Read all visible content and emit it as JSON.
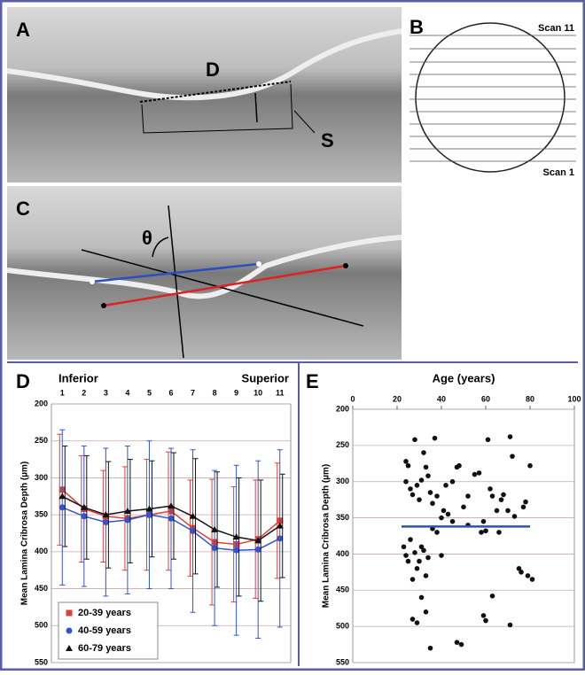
{
  "panels": {
    "a": {
      "letter": "A",
      "distance": "D",
      "slope": "S"
    },
    "b": {
      "letter": "B",
      "top_scan": "Scan 11",
      "bottom_scan": "Scan 1"
    },
    "c": {
      "letter": "C",
      "angle": "θ"
    },
    "d": {
      "letter": "D"
    },
    "e": {
      "letter": "E"
    }
  },
  "chart_data": [
    {
      "type": "line",
      "ylabel": "Mean Lamina Cribrosa Depth (µm)",
      "left_note": "Inferior",
      "right_note": "Superior",
      "categories": [
        "1",
        "2",
        "3",
        "4",
        "5",
        "6",
        "7",
        "8",
        "9",
        "10",
        "11"
      ],
      "ylim": [
        200,
        550
      ],
      "yticks": [
        200,
        250,
        300,
        350,
        400,
        450,
        500,
        550
      ],
      "y_inverted": true,
      "grid": true,
      "legend": "lower-left",
      "series": [
        {
          "name": "20-39 years",
          "color": "#e0403a",
          "marker": "square",
          "values": [
            316,
            342,
            352,
            355,
            350,
            345,
            368,
            387,
            390,
            383,
            358
          ],
          "errors": [
            75,
            72,
            62,
            70,
            75,
            80,
            65,
            85,
            78,
            80,
            78
          ]
        },
        {
          "name": "40-59 years",
          "color": "#3355cc",
          "marker": "circle",
          "values": [
            340,
            352,
            360,
            357,
            350,
            355,
            372,
            395,
            398,
            397,
            382
          ],
          "errors": [
            105,
            95,
            100,
            100,
            100,
            95,
            110,
            105,
            115,
            120,
            120
          ]
        },
        {
          "name": "60-79 years",
          "color": "#111111",
          "marker": "triangle",
          "values": [
            325,
            340,
            350,
            345,
            342,
            338,
            352,
            370,
            380,
            385,
            365
          ],
          "errors": [
            68,
            70,
            72,
            70,
            65,
            72,
            78,
            78,
            80,
            82,
            70
          ]
        }
      ]
    },
    {
      "type": "scatter",
      "title": "Age (years)",
      "ylabel": "Mean Lamina Cribrosa Depth (µm)",
      "color": "#111111",
      "xlim": [
        0,
        100
      ],
      "xticks": [
        0,
        20,
        40,
        60,
        80,
        100
      ],
      "ylim": [
        200,
        550
      ],
      "yticks": [
        200,
        250,
        300,
        350,
        400,
        450,
        500,
        550
      ],
      "y_inverted": true,
      "grid": true,
      "x": [
        24,
        25,
        24,
        26,
        27,
        28,
        29,
        30,
        31,
        32,
        33,
        34,
        35,
        36,
        37,
        38,
        40,
        41,
        42,
        43,
        45,
        47,
        48,
        50,
        52,
        55,
        57,
        59,
        60,
        61,
        62,
        63,
        65,
        66,
        67,
        68,
        70,
        71,
        72,
        73,
        75,
        76,
        77,
        78,
        79,
        80,
        81,
        23,
        24,
        25,
        26,
        27,
        28,
        29,
        30,
        31,
        32,
        33,
        34,
        36,
        38,
        40,
        27,
        29,
        31,
        33,
        35,
        47,
        49,
        59,
        60,
        63,
        71,
        45,
        52,
        58
      ],
      "y": [
        272,
        278,
        300,
        310,
        318,
        242,
        305,
        325,
        298,
        260,
        280,
        292,
        315,
        330,
        240,
        320,
        350,
        340,
        305,
        345,
        300,
        280,
        278,
        335,
        320,
        290,
        288,
        355,
        368,
        242,
        310,
        320,
        340,
        370,
        325,
        318,
        340,
        238,
        265,
        348,
        420,
        425,
        335,
        328,
        430,
        278,
        435,
        390,
        402,
        410,
        380,
        435,
        398,
        420,
        410,
        390,
        395,
        430,
        405,
        365,
        370,
        402,
        490,
        495,
        460,
        480,
        530,
        522,
        525,
        485,
        492,
        458,
        498,
        355,
        360,
        370
      ],
      "mean_line": {
        "color": "#2b4fbf",
        "y": 362,
        "x": [
          22,
          80
        ]
      }
    }
  ]
}
